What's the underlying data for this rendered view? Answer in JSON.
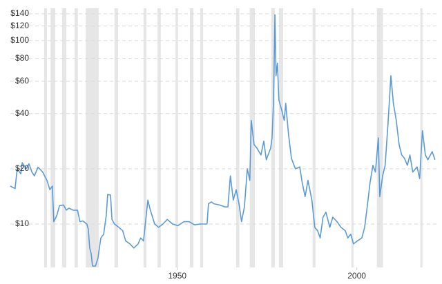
{
  "chart_data": {
    "type": "line",
    "log_scale": true,
    "grid": true,
    "x": [
      1903.5,
      1904.8,
      1905.4,
      1906.4,
      1906.8,
      1907.9,
      1908.7,
      1909.5,
      1910.2,
      1911.2,
      1912.5,
      1913.7,
      1914.5,
      1915.2,
      1915.6,
      1916.4,
      1917.2,
      1918.3,
      1919.1,
      1919.8,
      1921.0,
      1922.2,
      1922.9,
      1923.7,
      1924.8,
      1925.2,
      1925.6,
      1926.0,
      1926.4,
      1927.2,
      1927.9,
      1928.7,
      1929.5,
      1930.2,
      1930.6,
      1931.4,
      1931.8,
      1932.5,
      1933.7,
      1934.8,
      1935.6,
      1936.8,
      1937.9,
      1939.1,
      1939.8,
      1940.6,
      1941.0,
      1941.8,
      1942.5,
      1943.7,
      1944.8,
      1946.0,
      1947.2,
      1948.7,
      1950.2,
      1951.8,
      1953.3,
      1954.8,
      1956.4,
      1957.5,
      1958.3,
      1958.7,
      1959.5,
      1960.2,
      1961.8,
      1963.3,
      1964.1,
      1964.8,
      1965.6,
      1966.4,
      1967.2,
      1967.9,
      1968.7,
      1969.5,
      1970.2,
      1970.6,
      1971.4,
      1972.2,
      1973.3,
      1974.1,
      1974.8,
      1976.0,
      1976.4,
      1976.8,
      1977.2,
      1977.5,
      1977.9,
      1978.3,
      1979.1,
      1979.8,
      1980.2,
      1981.0,
      1981.8,
      1982.9,
      1984.1,
      1984.8,
      1985.6,
      1986.4,
      1987.5,
      1988.3,
      1989.1,
      1989.8,
      1990.6,
      1991.4,
      1992.5,
      1993.3,
      1994.5,
      1995.6,
      1996.8,
      1997.5,
      1998.3,
      1999.1,
      2000.2,
      2001.4,
      2002.2,
      2002.9,
      2003.7,
      2004.5,
      2005.2,
      2006.0,
      2006.4,
      2007.2,
      2007.9,
      2008.7,
      2009.5,
      2010.2,
      2011.0,
      2011.8,
      2012.5,
      2013.3,
      2014.1,
      2014.8,
      2015.6,
      2016.8,
      2017.5,
      2018.3,
      2019.1,
      2019.8,
      2021.0,
      2021.8
    ],
    "series": [
      {
        "color": "#5b9bd5",
        "values": [
          16.1,
          15.6,
          20,
          18.8,
          21.6,
          20,
          21.3,
          19.2,
          18.3,
          20.4,
          19.2,
          17.3,
          15.4,
          16.1,
          10.3,
          11.1,
          12.6,
          12.7,
          11.9,
          12.2,
          11.9,
          11.9,
          10.3,
          10.4,
          10,
          9.4,
          7.4,
          6.9,
          5.9,
          5.9,
          6.5,
          8.4,
          8.8,
          11.1,
          14.5,
          14.4,
          10.6,
          10,
          9.6,
          9.2,
          8.1,
          7.8,
          7.4,
          7.8,
          8.4,
          8.1,
          9.6,
          13.5,
          11.9,
          10,
          9.6,
          10,
          10.6,
          10,
          9.8,
          10.3,
          10.3,
          9.9,
          10,
          10,
          10,
          12.9,
          13.2,
          12.9,
          12.7,
          12.4,
          12.4,
          18.3,
          13.5,
          15.4,
          12.9,
          10.3,
          12.4,
          20,
          17.3,
          36.7,
          27.1,
          25.9,
          23.8,
          28.3,
          22.4,
          25.9,
          29.5,
          45.5,
          138,
          64.3,
          75.3,
          47.4,
          41.7,
          36.7,
          45.5,
          30.8,
          22.8,
          20,
          20.5,
          16.8,
          14.1,
          17.3,
          13.5,
          9.6,
          9.2,
          8.4,
          10.9,
          11.6,
          9.6,
          10.9,
          10.3,
          9.6,
          9.2,
          8.4,
          8.8,
          7.8,
          8.1,
          8.4,
          9.6,
          12.4,
          16.8,
          20.9,
          19.2,
          29.5,
          14.1,
          18.3,
          20.9,
          35.2,
          64.3,
          45.5,
          36.7,
          27.1,
          23.8,
          22.8,
          20.9,
          23.8,
          19.2,
          20.5,
          17.7,
          32.3,
          23.8,
          22.4,
          24.8,
          22.4
        ]
      }
    ],
    "recessions": [
      [
        1912.9,
        1913.7
      ],
      [
        1914.7,
        1916.0
      ],
      [
        1917.9,
        1919.1
      ],
      [
        1921.4,
        1922.3
      ],
      [
        1924.5,
        1928.1
      ],
      [
        1932.5,
        1933.5
      ],
      [
        1940.6,
        1941.4
      ],
      [
        1944.5,
        1945.4
      ],
      [
        1949.5,
        1950.2
      ],
      [
        1953.5,
        1954.5
      ],
      [
        1956.4,
        1957.2
      ],
      [
        1966.4,
        1967.3
      ],
      [
        1970.2,
        1971.6
      ],
      [
        1976.2,
        1977.2
      ],
      [
        1978.3,
        1979.5
      ],
      [
        1987.7,
        1988.5
      ],
      [
        1998.5,
        1999.1
      ],
      [
        2005.6,
        2007.3
      ],
      [
        2017.7,
        2018.3
      ]
    ],
    "recession_color": "#e6e6e6",
    "xlim": [
      1903.5,
      2022.2
    ],
    "xticks": [
      1950,
      2000
    ],
    "ylim": [
      5.8,
      150
    ],
    "yticks": [
      {
        "value": 10,
        "label": "$10"
      },
      {
        "value": 20,
        "label": "$20"
      },
      {
        "value": 40,
        "label": "$40"
      },
      {
        "value": 60,
        "label": "$60"
      },
      {
        "value": 80,
        "label": "$80"
      },
      {
        "value": 100,
        "label": "$100"
      },
      {
        "value": 120,
        "label": "$120"
      },
      {
        "value": 140,
        "label": "$140"
      }
    ]
  }
}
